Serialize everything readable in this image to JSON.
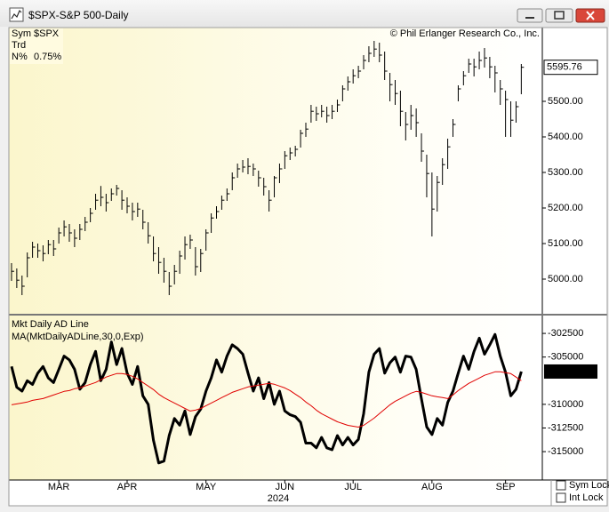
{
  "window": {
    "title": "$SPX-S&P 500-Daily"
  },
  "controls": [
    "Sym Lock",
    "Int Lock"
  ],
  "chart_data": [
    {
      "type": "ohlc",
      "annotation": "© Phil Erlanger Research Co., Inc.",
      "info": [
        {
          "label": "Sym",
          "value": "$SPX"
        },
        {
          "label": "Trd"
        },
        {
          "label": "N%",
          "value": "0.75%"
        }
      ],
      "color": "#000000",
      "xlim": [
        -0.5,
        101
      ],
      "ylim": [
        4905,
        5705
      ],
      "yticks": [
        {
          "value": 5000,
          "label": "5000.00"
        },
        {
          "value": 5100,
          "label": "5100.00"
        },
        {
          "value": 5200,
          "label": "5200.00"
        },
        {
          "value": 5300,
          "label": "5300.00"
        },
        {
          "value": 5400,
          "label": "5400.00"
        },
        {
          "value": 5500,
          "label": "5500.00"
        }
      ],
      "high": [
        5045,
        5030,
        5010,
        5075,
        5105,
        5100,
        5095,
        5110,
        5110,
        5145,
        5165,
        5155,
        5140,
        5155,
        5175,
        5200,
        5240,
        5262,
        5240,
        5255,
        5265,
        5250,
        5230,
        5215,
        5215,
        5195,
        5160,
        5120,
        5090,
        5060,
        5020,
        5040,
        5080,
        5120,
        5125,
        5090,
        5085,
        5140,
        5185,
        5205,
        5235,
        5255,
        5300,
        5325,
        5335,
        5340,
        5325,
        5305,
        5285,
        5250,
        5290,
        5325,
        5360,
        5370,
        5375,
        5420,
        5440,
        5490,
        5485,
        5490,
        5485,
        5490,
        5505,
        5545,
        5570,
        5590,
        5600,
        5630,
        5655,
        5670,
        5665,
        5640,
        5580,
        5560,
        5530,
        5470,
        5490,
        5480,
        5410,
        5350,
        5300,
        5290,
        5340,
        5395,
        5450,
        5545,
        5585,
        5620,
        5620,
        5640,
        5650,
        5625,
        5600,
        5560,
        5530,
        5500,
        5500,
        5605
      ],
      "low": [
        4995,
        4975,
        4955,
        5005,
        5060,
        5060,
        5050,
        5070,
        5065,
        5100,
        5120,
        5105,
        5090,
        5110,
        5135,
        5160,
        5195,
        5205,
        5190,
        5220,
        5235,
        5195,
        5185,
        5165,
        5175,
        5140,
        5100,
        5050,
        5015,
        4990,
        4955,
        4985,
        5015,
        5055,
        5085,
        5010,
        5020,
        5080,
        5130,
        5170,
        5195,
        5220,
        5250,
        5285,
        5300,
        5295,
        5290,
        5260,
        5235,
        5190,
        5230,
        5270,
        5310,
        5335,
        5345,
        5370,
        5400,
        5440,
        5445,
        5455,
        5440,
        5450,
        5470,
        5500,
        5530,
        5550,
        5565,
        5590,
        5610,
        5625,
        5610,
        5560,
        5500,
        5490,
        5430,
        5390,
        5420,
        5400,
        5330,
        5230,
        5120,
        5190,
        5265,
        5310,
        5400,
        5500,
        5545,
        5580,
        5570,
        5590,
        5595,
        5565,
        5525,
        5490,
        5400,
        5400,
        5440,
        5520
      ],
      "close": [
        5022,
        4997,
        4980,
        5060,
        5090,
        5080,
        5072,
        5097,
        5085,
        5130,
        5147,
        5130,
        5115,
        5140,
        5160,
        5185,
        5222,
        5230,
        5215,
        5240,
        5255,
        5222,
        5205,
        5190,
        5197,
        5160,
        5122,
        5072,
        5047,
        5022,
        4980,
        5022,
        5065,
        5097,
        5110,
        5035,
        5072,
        5130,
        5172,
        5190,
        5222,
        5240,
        5285,
        5310,
        5315,
        5317,
        5310,
        5285,
        5260,
        5222,
        5285,
        5310,
        5347,
        5355,
        5365,
        5410,
        5422,
        5472,
        5465,
        5472,
        5460,
        5472,
        5490,
        5535,
        5555,
        5572,
        5585,
        5615,
        5635,
        5647,
        5630,
        5585,
        5547,
        5522,
        5472,
        5435,
        5460,
        5440,
        5360,
        5297,
        5197,
        5272,
        5322,
        5372,
        5435,
        5535,
        5572,
        5605,
        5597,
        5615,
        5622,
        5597,
        5580,
        5535,
        5505,
        5447,
        5485,
        5595.76
      ]
    },
    {
      "type": "line",
      "xlim": [
        -0.5,
        101
      ],
      "xticks": [
        {
          "value": 9,
          "label": "MAR"
        },
        {
          "value": 22,
          "label": "APR"
        },
        {
          "value": 37,
          "label": "MAY"
        },
        {
          "value": 52,
          "label": "JUN"
        },
        {
          "value": 65,
          "label": "JUL"
        },
        {
          "value": 80,
          "label": "AUG"
        },
        {
          "value": 94,
          "label": "SEP"
        }
      ],
      "x_label": "2024",
      "ylim": [
        -318000,
        -300800
      ],
      "yticks": [
        -315000,
        -312500,
        -310000,
        -305000,
        -302500
      ],
      "series": [
        {
          "name": "Mkt Daily AD Line",
          "color": "#000000",
          "values": [
            -306000,
            -308200,
            -308600,
            -307500,
            -307900,
            -306700,
            -306000,
            -307200,
            -307700,
            -306300,
            -304900,
            -305300,
            -306300,
            -308400,
            -307700,
            -305800,
            -304400,
            -307500,
            -306300,
            -303400,
            -305800,
            -304100,
            -306700,
            -307900,
            -306000,
            -309100,
            -310000,
            -313800,
            -316200,
            -316000,
            -313300,
            -311500,
            -312200,
            -310700,
            -313200,
            -311300,
            -310500,
            -308600,
            -307200,
            -305300,
            -306600,
            -304900,
            -303700,
            -304100,
            -304700,
            -306700,
            -308600,
            -307200,
            -309400,
            -307700,
            -310000,
            -308600,
            -310700,
            -311100,
            -311300,
            -311900,
            -314100,
            -314100,
            -314600,
            -313500,
            -314600,
            -314800,
            -313300,
            -314300,
            -313500,
            -314300,
            -313700,
            -311000,
            -306600,
            -304700,
            -304100,
            -306700,
            -305600,
            -305000,
            -306600,
            -304900,
            -305000,
            -306300,
            -309400,
            -312400,
            -313200,
            -311500,
            -312200,
            -309800,
            -308600,
            -306700,
            -304900,
            -306300,
            -304400,
            -303000,
            -304700,
            -303700,
            -302600,
            -304900,
            -306600,
            -309100,
            -308400,
            -306530
          ]
        },
        {
          "name": "MA(MktDailyADLine,30,0,Exp)",
          "color": "#e00000",
          "values": [
            -310050,
            -309950,
            -309860,
            -309760,
            -309580,
            -309480,
            -309390,
            -309200,
            -309010,
            -308820,
            -308630,
            -308540,
            -308350,
            -308260,
            -308070,
            -307880,
            -307690,
            -307410,
            -307120,
            -306930,
            -306750,
            -306750,
            -306840,
            -307030,
            -307310,
            -307690,
            -308070,
            -308440,
            -308920,
            -309290,
            -309580,
            -309860,
            -310140,
            -310430,
            -310710,
            -310610,
            -310430,
            -310140,
            -309860,
            -309580,
            -309290,
            -309010,
            -308730,
            -308540,
            -308350,
            -308160,
            -308070,
            -307970,
            -307880,
            -307780,
            -307880,
            -308070,
            -308260,
            -308540,
            -308920,
            -309290,
            -309760,
            -310140,
            -310610,
            -310990,
            -311270,
            -311560,
            -311840,
            -312030,
            -312220,
            -312310,
            -312410,
            -312220,
            -311840,
            -311460,
            -310990,
            -310520,
            -310050,
            -309670,
            -309390,
            -309100,
            -308820,
            -308630,
            -308730,
            -308920,
            -309100,
            -309200,
            -309290,
            -309390,
            -309010,
            -308540,
            -308160,
            -307780,
            -307500,
            -307220,
            -306930,
            -306750,
            -306560,
            -306560,
            -306650,
            -306750,
            -307120,
            -307500
          ]
        }
      ]
    }
  ]
}
